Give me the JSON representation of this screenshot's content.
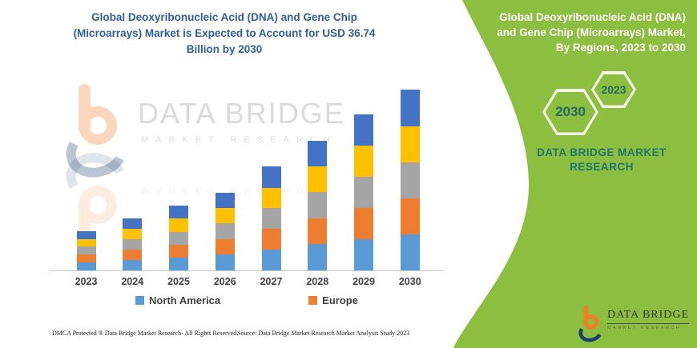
{
  "left": {
    "title": "Global Deoxyribonucleic Acid (DNA) and Gene Chip (Microarrays) Market is Expected to Account for USD 36.74 Billion by 2030",
    "watermark": {
      "brand": "DATA BRIDGE",
      "sub": "MARKET RESEARCH"
    },
    "footer": {
      "dmca": "DMCA Protected ® Data Bridge Market Research-  All Rights Reserved.",
      "source": "Source: Data Bridge Market Research  Market Analysis Study 2023"
    }
  },
  "right_panel": {
    "title": "Global Deoxyribonucleic Acid (DNA) and Gene Chip (Microarrays) Market, By Regions, 2023 to 2030",
    "hexagon_back": "2023",
    "hexagon_front": "2030",
    "brand_text": "DATA BRIDGE MARKET RESEARCH",
    "logo": {
      "brand": "DATA BRIDGE",
      "sub": "MARKET RESEARCH"
    }
  },
  "colors": {
    "panel_green": "#8cbe3f",
    "title_blue": "#2f6097",
    "teal_text": "#1e756f",
    "logo_orange": "#f07e26",
    "logo_navy": "#1f3e6e",
    "axis_label_gray": "#3f3f3f"
  },
  "chart_data": {
    "type": "bar",
    "subtype": "stacked",
    "title": "Global Deoxyribonucleic Acid (DNA) and Gene Chip (Microarrays) Market is Expected to Account for USD 36.74 Billion by 2030",
    "unit": "USD Billion",
    "categories": [
      "2023",
      "2024",
      "2025",
      "2026",
      "2027",
      "2028",
      "2029",
      "2030"
    ],
    "totals_estimated": [
      8.0,
      10.6,
      13.2,
      15.8,
      21.1,
      26.3,
      31.7,
      36.74
    ],
    "series": [
      {
        "name": "North America",
        "color": "#5B9BD5",
        "values": [
          1.6,
          2.1,
          2.6,
          3.2,
          4.2,
          5.3,
          6.3,
          7.3
        ]
      },
      {
        "name": "Europe",
        "color": "#ED7D31",
        "values": [
          1.6,
          2.1,
          2.6,
          3.2,
          4.2,
          5.3,
          6.3,
          7.3
        ]
      },
      {
        "name": "unlabeled-gray",
        "color": "#A5A5A5",
        "values": [
          1.6,
          2.1,
          2.6,
          3.2,
          4.2,
          5.3,
          6.4,
          7.4
        ]
      },
      {
        "name": "unlabeled-yellow",
        "color": "#FFC000",
        "values": [
          1.6,
          2.2,
          2.7,
          3.1,
          4.2,
          5.2,
          6.3,
          7.3
        ]
      },
      {
        "name": "unlabeled-darkblue",
        "color": "#4472C4",
        "values": [
          1.6,
          2.1,
          2.7,
          3.1,
          4.3,
          5.2,
          6.4,
          7.4
        ]
      }
    ],
    "legend": [
      {
        "label": "North America",
        "color": "#5B9BD5"
      },
      {
        "label": "Europe",
        "color": "#ED7D31"
      }
    ],
    "legend_position": "bottom",
    "value_axis_visible": false,
    "grid": false,
    "xlabel": "",
    "ylabel": ""
  }
}
